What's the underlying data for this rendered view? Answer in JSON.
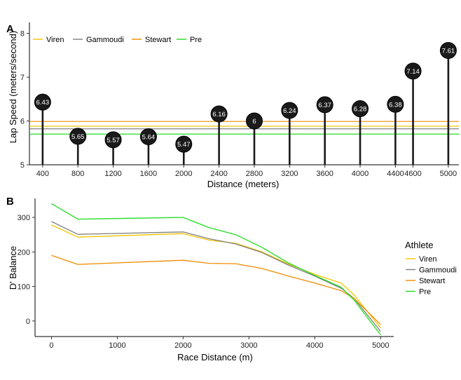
{
  "colors": {
    "Viren": "#f5c400",
    "Gammoudi": "#808080",
    "Stewart": "#f08c00",
    "Pre": "#22dd22",
    "lollipop": "#1a1a1a"
  },
  "chart_data": [
    {
      "panel": "A",
      "type": "lollipop",
      "xlabel": "Distance (meters)",
      "ylabel": "Lap Speed (meters/second)",
      "ylim": [
        5,
        8.25
      ],
      "yticks": [
        5,
        6,
        7,
        8
      ],
      "xlim": [
        250,
        5120
      ],
      "legend_position": "top-left",
      "x": [
        400,
        800,
        1200,
        1600,
        2000,
        2400,
        2800,
        3200,
        3600,
        4000,
        4400,
        4600,
        5000
      ],
      "x_tick_labels": [
        "400",
        "800",
        "1200",
        "1600",
        "2000",
        "2400",
        "2800",
        "3200",
        "3600",
        "4000",
        "4400",
        "4600",
        "5000"
      ],
      "values": [
        6.43,
        5.65,
        5.57,
        5.64,
        5.47,
        6.16,
        6.0,
        6.24,
        6.37,
        6.28,
        6.38,
        7.14,
        7.61
      ],
      "value_labels": [
        "6.43",
        "5.65",
        "5.57",
        "5.64",
        "5.47",
        "6.16",
        "6",
        "6.24",
        "6.37",
        "6.28",
        "6.38",
        "7.14",
        "7.61"
      ],
      "reference_lines": [
        {
          "name": "Viren",
          "value": 5.88
        },
        {
          "name": "Gammoudi",
          "value": 5.82
        },
        {
          "name": "Stewart",
          "value": 5.99
        },
        {
          "name": "Pre",
          "value": 5.7
        }
      ]
    },
    {
      "panel": "B",
      "type": "line",
      "xlabel": "Race Distance (m)",
      "ylabel": "D' Balance",
      "xlim": [
        -250,
        5200
      ],
      "ylim": [
        -45,
        355
      ],
      "xticks": [
        0,
        1000,
        2000,
        3000,
        4000,
        5000
      ],
      "yticks": [
        0,
        100,
        200,
        300
      ],
      "legend_title": "Athlete",
      "legend_position": "right",
      "series": [
        {
          "name": "Viren",
          "x": [
            0,
            400,
            2000,
            2400,
            2800,
            3200,
            3600,
            4000,
            4400,
            4600,
            5000
          ],
          "values": [
            278,
            243,
            253,
            234,
            225,
            200,
            165,
            135,
            110,
            75,
            -20
          ]
        },
        {
          "name": "Gammoudi",
          "x": [
            0,
            400,
            2000,
            2400,
            2800,
            3200,
            3600,
            4000,
            4400,
            4600,
            5000
          ],
          "values": [
            288,
            251,
            258,
            238,
            223,
            198,
            162,
            130,
            95,
            65,
            -30
          ]
        },
        {
          "name": "Stewart",
          "x": [
            0,
            400,
            2000,
            2400,
            2800,
            3200,
            3600,
            4000,
            4400,
            4600,
            5000
          ],
          "values": [
            190,
            164,
            176,
            167,
            166,
            152,
            130,
            110,
            88,
            65,
            -10
          ]
        },
        {
          "name": "Pre",
          "x": [
            0,
            400,
            2000,
            2400,
            2800,
            3200,
            3600,
            4000,
            4400,
            4600,
            5000
          ],
          "values": [
            340,
            295,
            300,
            270,
            250,
            213,
            168,
            132,
            98,
            60,
            -40
          ]
        }
      ]
    }
  ]
}
